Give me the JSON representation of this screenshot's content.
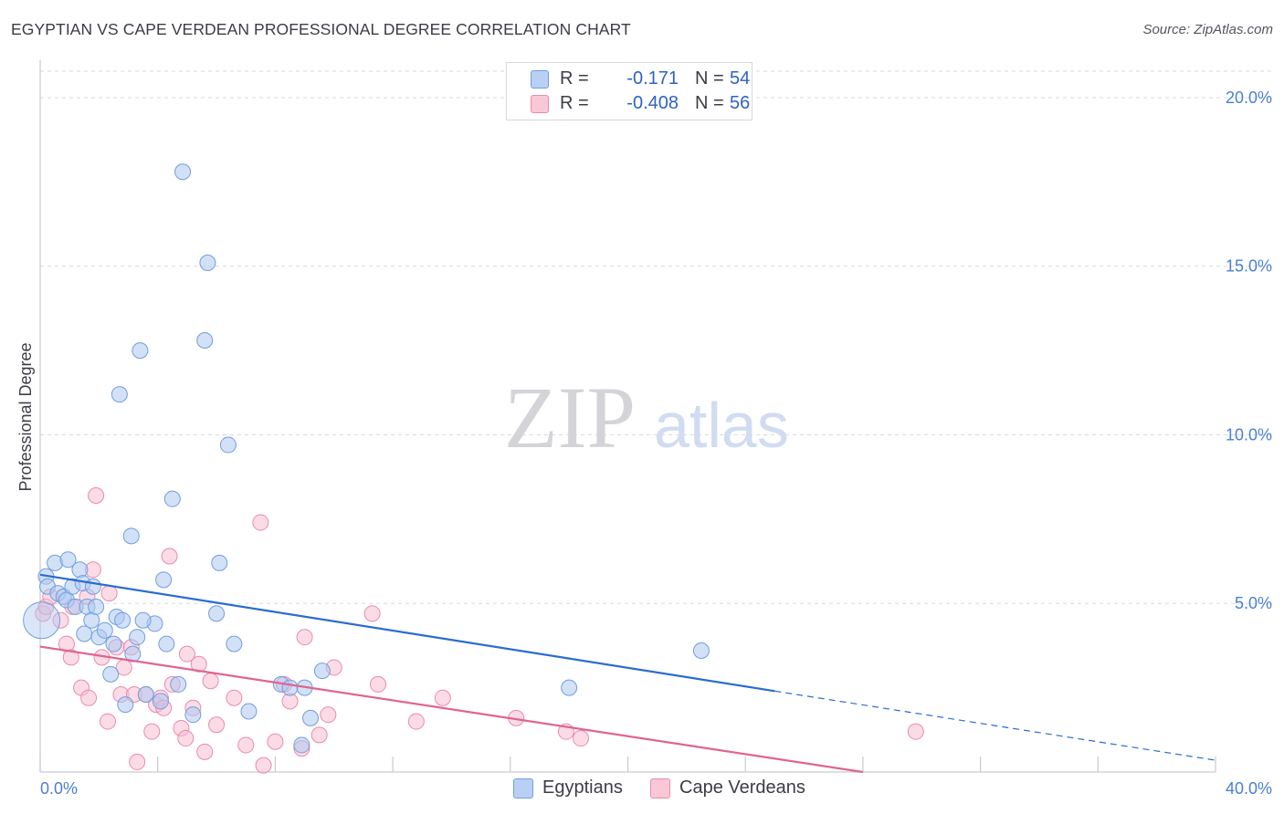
{
  "header": {
    "title": "EGYPTIAN VS CAPE VERDEAN PROFESSIONAL DEGREE CORRELATION CHART",
    "source": "Source: ZipAtlas.com"
  },
  "watermark": {
    "part1": "ZIP",
    "part2": "atlas"
  },
  "legend": {
    "rows": [
      {
        "r_label": "R =",
        "r_value": "-0.171",
        "n_label": "N =",
        "n_value": "54"
      },
      {
        "r_label": "R =",
        "r_value": "-0.408",
        "n_label": "N =",
        "n_value": "56"
      }
    ]
  },
  "bottom_legend": {
    "series1": "Egyptians",
    "series2": "Cape Verdeans"
  },
  "colors": {
    "blue_fill": "#aec8f0",
    "blue_stroke": "#6f9ee0",
    "blue_line": "#2a6ccf",
    "pink_fill": "#f8c0d2",
    "pink_stroke": "#ec8aab",
    "pink_line": "#e0648f",
    "grid": "#d9d9e0",
    "tick": "#4a7fd4"
  },
  "chart_data": {
    "type": "scatter",
    "title": "EGYPTIAN VS CAPE VERDEAN PROFESSIONAL DEGREE CORRELATION CHART",
    "xlabel": "",
    "ylabel": "Professional Degree",
    "xlim": [
      0,
      40
    ],
    "ylim": [
      0,
      21
    ],
    "x_tick_labels": [
      "0.0%",
      "40.0%"
    ],
    "y_ticks": [
      {
        "value": 5,
        "label": "5.0%"
      },
      {
        "value": 10,
        "label": "10.0%"
      },
      {
        "value": 15,
        "label": "15.0%"
      },
      {
        "value": 20,
        "label": "20.0%"
      }
    ],
    "series": [
      {
        "name": "Egyptians",
        "r": -0.171,
        "n": 54,
        "trend": {
          "x0": 0,
          "y0": 5.85,
          "x1": 25,
          "y1": 2.4,
          "x_end": 40,
          "y_end": 0.35
        },
        "points": [
          [
            0.05,
            4.5
          ],
          [
            0.2,
            5.8
          ],
          [
            0.25,
            5.5
          ],
          [
            0.5,
            6.2
          ],
          [
            0.6,
            5.3
          ],
          [
            0.8,
            5.2
          ],
          [
            0.9,
            5.1
          ],
          [
            0.95,
            6.3
          ],
          [
            1.1,
            5.5
          ],
          [
            1.2,
            4.9
          ],
          [
            1.35,
            6.0
          ],
          [
            1.45,
            5.6
          ],
          [
            1.5,
            4.1
          ],
          [
            1.6,
            4.9
          ],
          [
            1.75,
            4.5
          ],
          [
            1.8,
            5.5
          ],
          [
            1.9,
            4.9
          ],
          [
            2.0,
            4.0
          ],
          [
            2.2,
            4.2
          ],
          [
            2.4,
            2.9
          ],
          [
            2.5,
            3.8
          ],
          [
            2.6,
            4.6
          ],
          [
            2.7,
            11.2
          ],
          [
            2.8,
            4.5
          ],
          [
            2.9,
            2.0
          ],
          [
            3.1,
            7.0
          ],
          [
            3.15,
            3.5
          ],
          [
            3.3,
            4.0
          ],
          [
            3.4,
            12.5
          ],
          [
            3.6,
            2.3
          ],
          [
            3.9,
            4.4
          ],
          [
            4.1,
            2.1
          ],
          [
            4.2,
            5.7
          ],
          [
            4.3,
            3.8
          ],
          [
            4.5,
            8.1
          ],
          [
            4.7,
            2.6
          ],
          [
            4.85,
            17.8
          ],
          [
            5.2,
            1.7
          ],
          [
            5.6,
            12.8
          ],
          [
            5.7,
            15.1
          ],
          [
            6.0,
            4.7
          ],
          [
            6.1,
            6.2
          ],
          [
            6.4,
            9.7
          ],
          [
            6.6,
            3.8
          ],
          [
            7.1,
            1.8
          ],
          [
            8.2,
            2.6
          ],
          [
            8.5,
            2.5
          ],
          [
            8.9,
            0.8
          ],
          [
            9.0,
            2.5
          ],
          [
            9.2,
            1.6
          ],
          [
            9.6,
            3.0
          ],
          [
            18.0,
            2.5
          ],
          [
            22.5,
            3.6
          ],
          [
            3.5,
            4.5
          ]
        ]
      },
      {
        "name": "Cape Verdeans",
        "r": -0.408,
        "n": 56,
        "trend": {
          "x0": 0,
          "y0": 3.72,
          "x1": 28,
          "y1": 0
        },
        "points": [
          [
            0.1,
            4.7
          ],
          [
            0.2,
            4.9
          ],
          [
            0.35,
            5.2
          ],
          [
            0.7,
            4.5
          ],
          [
            0.9,
            3.8
          ],
          [
            1.05,
            3.4
          ],
          [
            1.1,
            4.9
          ],
          [
            1.4,
            2.5
          ],
          [
            1.6,
            5.2
          ],
          [
            1.65,
            2.2
          ],
          [
            1.8,
            6.0
          ],
          [
            1.9,
            8.2
          ],
          [
            2.1,
            3.4
          ],
          [
            2.3,
            1.5
          ],
          [
            2.35,
            5.3
          ],
          [
            2.6,
            3.7
          ],
          [
            2.75,
            2.3
          ],
          [
            2.85,
            3.1
          ],
          [
            3.1,
            3.7
          ],
          [
            3.2,
            2.3
          ],
          [
            3.3,
            0.3
          ],
          [
            3.6,
            2.3
          ],
          [
            3.8,
            1.2
          ],
          [
            3.95,
            2.0
          ],
          [
            4.1,
            2.2
          ],
          [
            4.2,
            1.9
          ],
          [
            4.4,
            6.4
          ],
          [
            4.5,
            2.6
          ],
          [
            4.8,
            1.3
          ],
          [
            4.95,
            1.0
          ],
          [
            5.0,
            3.5
          ],
          [
            5.4,
            3.2
          ],
          [
            5.6,
            0.6
          ],
          [
            5.8,
            2.7
          ],
          [
            6.0,
            1.4
          ],
          [
            6.6,
            2.2
          ],
          [
            7.0,
            0.8
          ],
          [
            7.5,
            7.4
          ],
          [
            7.6,
            0.2
          ],
          [
            8.0,
            0.9
          ],
          [
            8.3,
            2.6
          ],
          [
            8.5,
            2.1
          ],
          [
            8.9,
            0.7
          ],
          [
            9.0,
            4.0
          ],
          [
            9.5,
            1.1
          ],
          [
            9.8,
            1.7
          ],
          [
            10.0,
            3.1
          ],
          [
            11.3,
            4.7
          ],
          [
            11.5,
            2.6
          ],
          [
            12.8,
            1.5
          ],
          [
            13.7,
            2.2
          ],
          [
            16.2,
            1.6
          ],
          [
            17.9,
            1.2
          ],
          [
            18.4,
            1.0
          ],
          [
            29.8,
            1.2
          ],
          [
            5.2,
            1.9
          ]
        ]
      }
    ]
  }
}
